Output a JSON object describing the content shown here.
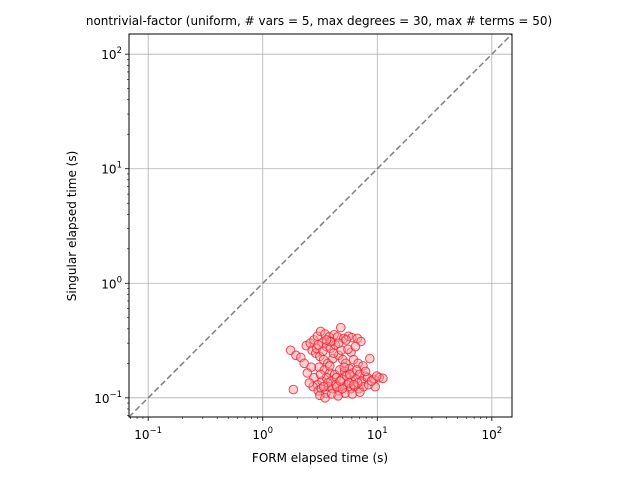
{
  "chart_data": {
    "type": "scatter",
    "title": "nontrivial-factor (uniform, # vars = 5, max degrees = 30, max # terms = 50)",
    "xlabel": "FORM elapsed time (s)",
    "ylabel": "Singular elapsed time (s)",
    "xscale": "log",
    "yscale": "log",
    "xlim": [
      0.068,
      150
    ],
    "ylim": [
      0.068,
      150
    ],
    "grid": true,
    "x_ticks": [
      {
        "base": "10",
        "exp": "−1",
        "value": 0.1
      },
      {
        "base": "10",
        "exp": "0",
        "value": 1
      },
      {
        "base": "10",
        "exp": "1",
        "value": 10
      },
      {
        "base": "10",
        "exp": "2",
        "value": 100
      }
    ],
    "y_ticks": [
      {
        "base": "10",
        "exp": "−1",
        "value": 0.1
      },
      {
        "base": "10",
        "exp": "0",
        "value": 1
      },
      {
        "base": "10",
        "exp": "1",
        "value": 10
      },
      {
        "base": "10",
        "exp": "2",
        "value": 100
      }
    ],
    "reference_line": {
      "style": "dashed",
      "color": "#808080",
      "meaning": "y = x"
    },
    "marker": {
      "face": "#ff9aa2",
      "edge": "#e8202a"
    },
    "points": [
      [
        1.75,
        0.26
      ],
      [
        1.95,
        0.235
      ],
      [
        2.15,
        0.225
      ],
      [
        1.85,
        0.118
      ],
      [
        2.4,
        0.285
      ],
      [
        2.6,
        0.3
      ],
      [
        2.8,
        0.32
      ],
      [
        3.0,
        0.345
      ],
      [
        3.2,
        0.38
      ],
      [
        3.5,
        0.36
      ],
      [
        3.8,
        0.34
      ],
      [
        4.0,
        0.31
      ],
      [
        4.2,
        0.355
      ],
      [
        4.5,
        0.34
      ],
      [
        4.8,
        0.41
      ],
      [
        5.1,
        0.33
      ],
      [
        5.6,
        0.345
      ],
      [
        6.0,
        0.335
      ],
      [
        6.7,
        0.33
      ],
      [
        7.2,
        0.31
      ],
      [
        3.3,
        0.3
      ],
      [
        3.6,
        0.28
      ],
      [
        3.9,
        0.27
      ],
      [
        4.3,
        0.29
      ],
      [
        2.7,
        0.26
      ],
      [
        2.9,
        0.245
      ],
      [
        3.15,
        0.23
      ],
      [
        3.4,
        0.215
      ],
      [
        3.7,
        0.2
      ],
      [
        4.1,
        0.22
      ],
      [
        4.6,
        0.235
      ],
      [
        5.0,
        0.215
      ],
      [
        5.3,
        0.2
      ],
      [
        5.9,
        0.25
      ],
      [
        6.2,
        0.215
      ],
      [
        6.8,
        0.2
      ],
      [
        7.5,
        0.19
      ],
      [
        8.6,
        0.22
      ],
      [
        3.1,
        0.185
      ],
      [
        3.45,
        0.175
      ],
      [
        3.85,
        0.165
      ],
      [
        4.25,
        0.16
      ],
      [
        4.7,
        0.175
      ],
      [
        5.2,
        0.17
      ],
      [
        5.7,
        0.18
      ],
      [
        6.1,
        0.165
      ],
      [
        6.6,
        0.175
      ],
      [
        7.0,
        0.16
      ],
      [
        7.8,
        0.155
      ],
      [
        2.8,
        0.15
      ],
      [
        3.0,
        0.13
      ],
      [
        3.3,
        0.14
      ],
      [
        3.6,
        0.15
      ],
      [
        3.95,
        0.14
      ],
      [
        4.4,
        0.15
      ],
      [
        4.9,
        0.145
      ],
      [
        5.4,
        0.155
      ],
      [
        5.95,
        0.14
      ],
      [
        6.5,
        0.145
      ],
      [
        7.3,
        0.14
      ],
      [
        8.2,
        0.15
      ],
      [
        9.3,
        0.145
      ],
      [
        10.4,
        0.15
      ],
      [
        11.2,
        0.148
      ],
      [
        2.75,
        0.125
      ],
      [
        3.05,
        0.115
      ],
      [
        3.25,
        0.12
      ],
      [
        3.55,
        0.11
      ],
      [
        3.75,
        0.125
      ],
      [
        4.05,
        0.12
      ],
      [
        4.35,
        0.13
      ],
      [
        4.65,
        0.115
      ],
      [
        5.05,
        0.125
      ],
      [
        5.45,
        0.13
      ],
      [
        5.85,
        0.12
      ],
      [
        6.35,
        0.125
      ],
      [
        6.9,
        0.12
      ],
      [
        7.6,
        0.125
      ],
      [
        8.4,
        0.13
      ],
      [
        9.6,
        0.125
      ],
      [
        3.15,
        0.105
      ],
      [
        3.5,
        0.1
      ],
      [
        4.0,
        0.108
      ],
      [
        4.55,
        0.104
      ],
      [
        5.25,
        0.11
      ],
      [
        6.05,
        0.108
      ],
      [
        7.05,
        0.112
      ],
      [
        2.95,
        0.27
      ],
      [
        3.35,
        0.255
      ],
      [
        4.15,
        0.245
      ],
      [
        4.85,
        0.26
      ],
      [
        5.55,
        0.265
      ],
      [
        6.45,
        0.28
      ],
      [
        3.2,
        0.16
      ],
      [
        3.7,
        0.135
      ],
      [
        4.45,
        0.125
      ],
      [
        5.65,
        0.135
      ],
      [
        6.75,
        0.135
      ],
      [
        8.9,
        0.14
      ],
      [
        2.55,
        0.135
      ],
      [
        3.9,
        0.31
      ],
      [
        4.6,
        0.3
      ],
      [
        5.35,
        0.32
      ],
      [
        2.3,
        0.2
      ],
      [
        2.65,
        0.185
      ],
      [
        3.05,
        0.29
      ],
      [
        3.6,
        0.32
      ],
      [
        4.95,
        0.12
      ],
      [
        5.75,
        0.16
      ],
      [
        7.9,
        0.17
      ],
      [
        9.9,
        0.155
      ],
      [
        3.4,
        0.125
      ],
      [
        4.75,
        0.14
      ],
      [
        6.25,
        0.13
      ],
      [
        2.45,
        0.165
      ],
      [
        3.85,
        0.19
      ],
      [
        5.15,
        0.185
      ]
    ]
  }
}
